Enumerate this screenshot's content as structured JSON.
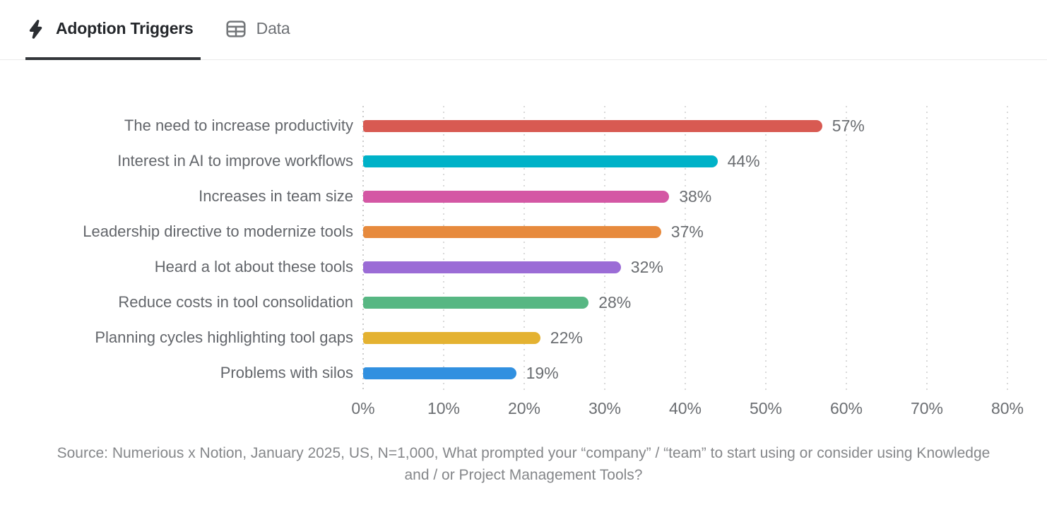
{
  "tabs": {
    "adoption_triggers": {
      "label": "Adoption Triggers",
      "icon": "lightning-bolt-icon",
      "active": true
    },
    "data": {
      "label": "Data",
      "icon": "table-icon",
      "active": false
    }
  },
  "chart_data": {
    "type": "bar",
    "orientation": "horizontal",
    "title": "Adoption Triggers",
    "categories": [
      "The need to increase productivity",
      "Interest in AI to improve workflows",
      "Increases in team size",
      "Leadership directive to modernize tools",
      "Heard a lot about these tools",
      "Reduce costs in tool consolidation",
      "Planning cycles highlighting tool gaps",
      "Problems with silos"
    ],
    "values": [
      57,
      44,
      38,
      37,
      32,
      28,
      22,
      19
    ],
    "value_labels": [
      "57%",
      "44%",
      "38%",
      "37%",
      "32%",
      "28%",
      "22%",
      "19%"
    ],
    "bar_colors": [
      "#d85a52",
      "#00b2c8",
      "#d457a4",
      "#e78a3d",
      "#9b6cd6",
      "#57b783",
      "#e4b231",
      "#3190e0"
    ],
    "x_ticks": [
      "0%",
      "10%",
      "20%",
      "30%",
      "40%",
      "50%",
      "60%",
      "70%",
      "80%"
    ],
    "xlim": [
      0,
      80
    ],
    "grid": "dotted-vertical",
    "gridline_color": "#d9d9d9",
    "label_color": "#63666b",
    "value_label_color": "#6a6d71"
  },
  "source": {
    "text": "Source: Numerious x Notion, January 2025, US, N=1,000, What prompted your “company” / “team” to start using or consider using Knowledge and / or Project Management Tools?"
  }
}
